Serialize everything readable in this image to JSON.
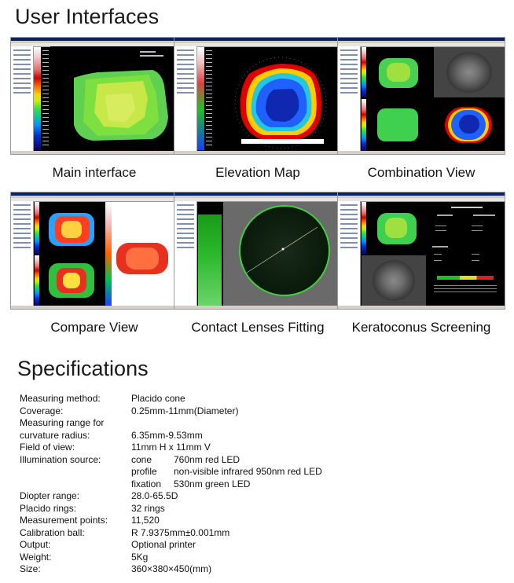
{
  "headings": {
    "user_interfaces": "User Interfaces",
    "specifications": "Specifications"
  },
  "screenshots": [
    {
      "caption": "Main interface"
    },
    {
      "caption": "Elevation Map"
    },
    {
      "caption": "Combination View"
    },
    {
      "caption": "Compare View"
    },
    {
      "caption": "Contact Lenses Fitting"
    },
    {
      "caption": "Keratoconus Screening"
    }
  ],
  "specs": {
    "measuring_method": {
      "label": "Measuring method:",
      "value": "Placido cone"
    },
    "coverage": {
      "label": "Coverage:",
      "value": "0.25mm-11mm(Diameter)"
    },
    "measuring_range_1": {
      "label": "Measuring range for"
    },
    "measuring_range_2": {
      "label": "curvature radius:",
      "value": "6.35mm-9.53mm"
    },
    "field_of_view": {
      "label": "Field of view:",
      "value": "11mm H x 11mm V"
    },
    "illumination": {
      "label": "Illumination source:",
      "items": [
        {
          "name": "cone",
          "detail": "760nm red LED"
        },
        {
          "name": "profile",
          "detail": "non-visible infrared 950nm red LED"
        },
        {
          "name": "fixation",
          "detail": "530nm green LED"
        }
      ]
    },
    "diopter_range": {
      "label": "Diopter range:",
      "value": "28.0-65.5D"
    },
    "placido_rings": {
      "label": "Placido rings:",
      "value": "32 rings"
    },
    "measurement_points": {
      "label": "Measurement points:",
      "value": "11,520"
    },
    "calibration_ball": {
      "label": "Calibration ball:",
      "value": "R 7.9375mm±0.001mm"
    },
    "output": {
      "label": "Output:",
      "value": "Optional printer"
    },
    "weight": {
      "label": "Weight:",
      "value": "5Kg"
    },
    "size": {
      "label": "Size:",
      "value": "360×380×450(mm)"
    }
  }
}
